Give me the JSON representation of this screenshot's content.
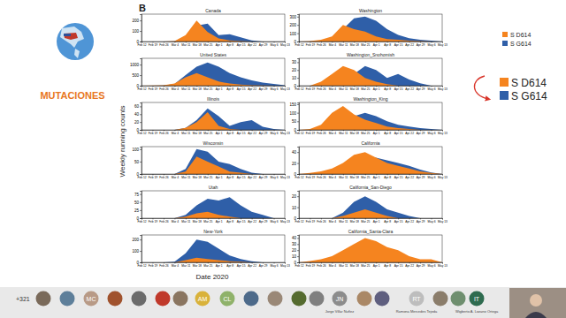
{
  "slide": {
    "title": "MUTACIONES",
    "panel_label": "B",
    "y_label": "Weekly running counts",
    "x_label": "Date 2020",
    "legend": [
      {
        "label": "S D614",
        "color": "#f5841f"
      },
      {
        "label": "S G614",
        "color": "#2f5fa8"
      }
    ]
  },
  "chart_data": [
    {
      "type": "area",
      "title": "Canada",
      "stacked": false,
      "x": [
        "Feb 12",
        "Feb 19",
        "Feb 26",
        "Mar 4",
        "Mar 11",
        "Mar 18",
        "Mar 25",
        "Apr 1",
        "Apr 8",
        "Apr 15",
        "Apr 22",
        "Apr 29",
        "May 6",
        "May 13"
      ],
      "series": [
        {
          "color": "#f5841f",
          "values": [
            0,
            0,
            0,
            5,
            60,
            200,
            90,
            30,
            10,
            5,
            0,
            0,
            0,
            0
          ]
        },
        {
          "color": "#2f5fa8",
          "values": [
            0,
            0,
            0,
            2,
            30,
            150,
            170,
            60,
            70,
            40,
            10,
            0,
            0,
            0
          ]
        }
      ],
      "ylim": [
        0,
        260
      ],
      "yticks": [
        0,
        100,
        200
      ]
    },
    {
      "type": "area",
      "title": "United States",
      "stacked": false,
      "x": [
        "Feb 12",
        "Feb 19",
        "Feb 26",
        "Mar 4",
        "Mar 11",
        "Mar 18",
        "Mar 25",
        "Apr 1",
        "Apr 8",
        "Apr 15",
        "Apr 22",
        "Apr 29",
        "May 6",
        "May 13"
      ],
      "series": [
        {
          "color": "#f5841f",
          "values": [
            5,
            10,
            20,
            100,
            400,
            600,
            400,
            200,
            100,
            50,
            20,
            10,
            5,
            0
          ]
        },
        {
          "color": "#2f5fa8",
          "values": [
            0,
            2,
            10,
            80,
            500,
            900,
            1100,
            900,
            600,
            400,
            250,
            150,
            80,
            20
          ]
        }
      ],
      "ylim": [
        0,
        1300
      ],
      "yticks": [
        0,
        500,
        1000
      ]
    },
    {
      "type": "area",
      "title": "Illinois",
      "stacked": false,
      "x": [
        "Feb 12",
        "Feb 19",
        "Feb 26",
        "Mar 4",
        "Mar 11",
        "Mar 18",
        "Mar 25",
        "Apr 1",
        "Apr 8",
        "Apr 15",
        "Apr 22",
        "Apr 29",
        "May 6",
        "May 13"
      ],
      "series": [
        {
          "color": "#f5841f",
          "values": [
            0,
            0,
            0,
            0,
            5,
            20,
            45,
            10,
            2,
            0,
            0,
            0,
            0,
            0
          ]
        },
        {
          "color": "#2f5fa8",
          "values": [
            0,
            0,
            0,
            0,
            5,
            25,
            55,
            35,
            10,
            20,
            25,
            8,
            2,
            0
          ]
        }
      ],
      "ylim": [
        0,
        70
      ],
      "yticks": [
        0,
        20,
        40,
        60
      ]
    },
    {
      "type": "area",
      "title": "Wisconsin",
      "stacked": false,
      "x": [
        "Feb 12",
        "Feb 19",
        "Feb 26",
        "Mar 4",
        "Mar 11",
        "Mar 18",
        "Mar 25",
        "Apr 1",
        "Apr 8",
        "Apr 15",
        "Apr 22",
        "Apr 29",
        "May 6",
        "May 13"
      ],
      "series": [
        {
          "color": "#f5841f",
          "values": [
            0,
            0,
            0,
            0,
            10,
            70,
            50,
            30,
            10,
            5,
            0,
            0,
            0,
            0
          ]
        },
        {
          "color": "#2f5fa8",
          "values": [
            0,
            0,
            0,
            0,
            20,
            100,
            90,
            50,
            40,
            20,
            5,
            0,
            0,
            0
          ]
        }
      ],
      "ylim": [
        0,
        110
      ],
      "yticks": [
        0,
        50,
        100
      ]
    },
    {
      "type": "area",
      "title": "Utah",
      "stacked": false,
      "x": [
        "Feb 12",
        "Feb 19",
        "Feb 26",
        "Mar 4",
        "Mar 11",
        "Mar 18",
        "Mar 25",
        "Apr 1",
        "Apr 8",
        "Apr 15",
        "Apr 22",
        "Apr 29",
        "May 6",
        "May 13"
      ],
      "series": [
        {
          "color": "#f5841f",
          "values": [
            0,
            0,
            0,
            0,
            5,
            15,
            20,
            10,
            5,
            0,
            0,
            0,
            0,
            0
          ]
        },
        {
          "color": "#2f5fa8",
          "values": [
            0,
            0,
            0,
            0,
            10,
            40,
            60,
            55,
            65,
            40,
            20,
            10,
            0,
            0
          ]
        }
      ],
      "ylim": [
        0,
        85
      ],
      "yticks": [
        0,
        25,
        50,
        75
      ]
    },
    {
      "type": "area",
      "title": "New-York",
      "stacked": false,
      "x": [
        "Feb 12",
        "Feb 19",
        "Feb 26",
        "Mar 4",
        "Mar 11",
        "Mar 18",
        "Mar 25",
        "Apr 1",
        "Apr 8",
        "Apr 15",
        "Apr 22",
        "Apr 29",
        "May 6",
        "May 13"
      ],
      "series": [
        {
          "color": "#f5841f",
          "values": [
            0,
            0,
            0,
            0,
            20,
            40,
            30,
            20,
            10,
            5,
            0,
            0,
            0,
            0
          ]
        },
        {
          "color": "#2f5fa8",
          "values": [
            0,
            0,
            0,
            5,
            80,
            200,
            180,
            120,
            60,
            30,
            10,
            0,
            0,
            0
          ]
        }
      ],
      "ylim": [
        0,
        240
      ],
      "yticks": [
        0,
        100,
        200
      ]
    },
    {
      "type": "area",
      "title": "Washington",
      "stacked": false,
      "x": [
        "Feb 12",
        "Feb 19",
        "Feb 26",
        "Mar 4",
        "Mar 11",
        "Mar 18",
        "Mar 25",
        "Apr 1",
        "Apr 8",
        "Apr 15",
        "Apr 22",
        "Apr 29",
        "May 6",
        "May 13"
      ],
      "series": [
        {
          "color": "#f5841f",
          "values": [
            0,
            5,
            20,
            60,
            200,
            150,
            120,
            60,
            30,
            20,
            10,
            5,
            0,
            0
          ]
        },
        {
          "color": "#2f5fa8",
          "values": [
            0,
            0,
            5,
            30,
            150,
            280,
            300,
            250,
            150,
            80,
            40,
            20,
            10,
            0
          ]
        }
      ],
      "ylim": [
        0,
        330
      ],
      "yticks": [
        0,
        100,
        200,
        300
      ]
    },
    {
      "type": "area",
      "title": "Washington_Snohomish",
      "stacked": false,
      "x": [
        "Feb 12",
        "Feb 19",
        "Feb 26",
        "Mar 4",
        "Mar 11",
        "Mar 18",
        "Mar 25",
        "Apr 1",
        "Apr 8",
        "Apr 15",
        "Apr 22",
        "Apr 29",
        "May 6",
        "May 13"
      ],
      "series": [
        {
          "color": "#f5841f",
          "values": [
            0,
            0,
            5,
            15,
            25,
            20,
            10,
            5,
            2,
            0,
            0,
            0,
            0,
            0
          ]
        },
        {
          "color": "#2f5fa8",
          "values": [
            0,
            0,
            0,
            2,
            8,
            15,
            25,
            20,
            10,
            15,
            8,
            3,
            0,
            0
          ]
        }
      ],
      "ylim": [
        0,
        35
      ],
      "yticks": [
        0,
        10,
        20,
        30
      ]
    },
    {
      "type": "area",
      "title": "Washington_King",
      "stacked": false,
      "x": [
        "Feb 12",
        "Feb 19",
        "Feb 26",
        "Mar 4",
        "Mar 11",
        "Mar 18",
        "Mar 25",
        "Apr 1",
        "Apr 8",
        "Apr 15",
        "Apr 22",
        "Apr 29",
        "May 6",
        "May 13"
      ],
      "series": [
        {
          "color": "#f5841f",
          "values": [
            0,
            5,
            30,
            100,
            140,
            90,
            60,
            40,
            20,
            10,
            5,
            0,
            0,
            0
          ]
        },
        {
          "color": "#2f5fa8",
          "values": [
            0,
            0,
            0,
            10,
            40,
            80,
            100,
            80,
            50,
            30,
            20,
            10,
            5,
            0
          ]
        }
      ],
      "ylim": [
        0,
        160
      ],
      "yticks": [
        0,
        50,
        100,
        150
      ]
    },
    {
      "type": "area",
      "title": "California",
      "stacked": false,
      "x": [
        "Feb 12",
        "Feb 19",
        "Feb 26",
        "Mar 4",
        "Mar 11",
        "Mar 18",
        "Mar 25",
        "Apr 1",
        "Apr 8",
        "Apr 15",
        "Apr 22",
        "Apr 29",
        "May 6",
        "May 13"
      ],
      "series": [
        {
          "color": "#f5841f",
          "values": [
            0,
            2,
            5,
            10,
            20,
            35,
            40,
            30,
            20,
            15,
            10,
            5,
            2,
            0
          ]
        },
        {
          "color": "#2f5fa8",
          "values": [
            0,
            0,
            2,
            5,
            15,
            30,
            35,
            30,
            25,
            20,
            15,
            8,
            3,
            0
          ]
        }
      ],
      "ylim": [
        0,
        50
      ],
      "yticks": [
        0,
        20,
        40
      ]
    },
    {
      "type": "area",
      "title": "California_San-Diego",
      "stacked": false,
      "x": [
        "Feb 12",
        "Feb 19",
        "Feb 26",
        "Mar 4",
        "Mar 11",
        "Mar 18",
        "Mar 25",
        "Apr 1",
        "Apr 8",
        "Apr 15",
        "Apr 22",
        "Apr 29",
        "May 6",
        "May 13"
      ],
      "series": [
        {
          "color": "#f5841f",
          "values": [
            0,
            0,
            0,
            0,
            2,
            5,
            8,
            5,
            2,
            0,
            0,
            0,
            0,
            0
          ]
        },
        {
          "color": "#2f5fa8",
          "values": [
            0,
            0,
            0,
            0,
            5,
            15,
            20,
            15,
            8,
            5,
            2,
            0,
            0,
            0
          ]
        }
      ],
      "ylim": [
        0,
        25
      ],
      "yticks": [
        0,
        10,
        20
      ]
    },
    {
      "type": "area",
      "title": "California_Santa-Clara",
      "stacked": false,
      "x": [
        "Feb 12",
        "Feb 19",
        "Feb 26",
        "Mar 4",
        "Mar 11",
        "Mar 18",
        "Mar 25",
        "Apr 1",
        "Apr 8",
        "Apr 15",
        "Apr 22",
        "Apr 29",
        "May 6",
        "May 13"
      ],
      "series": [
        {
          "color": "#f5841f",
          "values": [
            0,
            2,
            5,
            10,
            20,
            30,
            40,
            35,
            25,
            20,
            10,
            5,
            5,
            0
          ]
        },
        {
          "color": "#2f5fa8",
          "values": [
            0,
            0,
            2,
            5,
            10,
            20,
            25,
            15,
            10,
            8,
            5,
            2,
            0,
            0
          ]
        }
      ],
      "ylim": [
        0,
        45
      ],
      "yticks": [
        0,
        10,
        20,
        30,
        40
      ]
    }
  ],
  "call": {
    "more_participants": "+321",
    "participants": [
      {
        "initials": "MC",
        "color": "#b89a86"
      },
      {
        "initials": "AM",
        "color": "#d9b23a"
      },
      {
        "initials": "CL",
        "color": "#8fb26a"
      },
      {
        "initials": "JN",
        "color": "#8c8c8c"
      },
      {
        "initials": "RT",
        "color": "#bdbdbd"
      },
      {
        "initials": "IT",
        "color": "#2e6b4f"
      }
    ],
    "names": [
      "Jorge Villar Nuñez",
      "Ramona Mercedes Tejeda",
      "Wigberto A. Lozano Ortega"
    ]
  }
}
